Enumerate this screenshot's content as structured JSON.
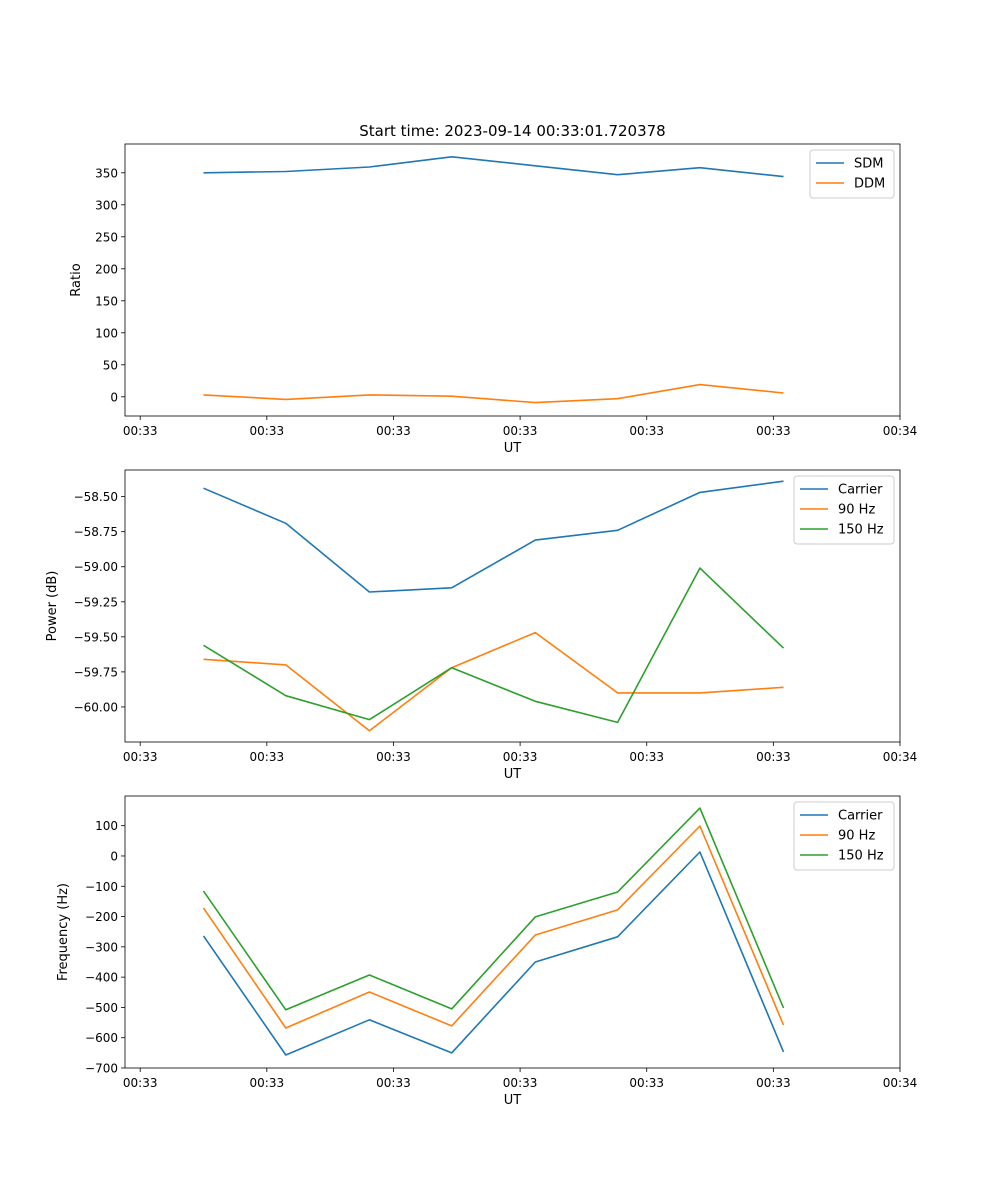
{
  "chart_data": [
    {
      "type": "line",
      "title": "Start time: 2023-09-14 00:33:01.720378",
      "xlabel": "UT",
      "ylabel": "Ratio",
      "xlim": [
        -0.12,
        6.0
      ],
      "ylim": [
        -30,
        395
      ],
      "x_ticks": [
        0,
        1,
        2,
        3,
        4,
        5,
        6
      ],
      "x_tick_labels": [
        "00:33",
        "00:33",
        "00:33",
        "00:33",
        "00:33",
        "00:33",
        "00:34"
      ],
      "y_ticks": [
        0,
        50,
        100,
        150,
        200,
        250,
        300,
        350
      ],
      "y_tick_labels": [
        "0",
        "50",
        "100",
        "150",
        "200",
        "250",
        "300",
        "350"
      ],
      "x": [
        0.5,
        1.15,
        1.81,
        2.46,
        3.12,
        3.77,
        4.42,
        5.08
      ],
      "legend": "top-right",
      "series": [
        {
          "name": "SDM",
          "color": "#1f77b4",
          "values": [
            350,
            352,
            359,
            375,
            361,
            347,
            358,
            344
          ]
        },
        {
          "name": "DDM",
          "color": "#ff7f0e",
          "values": [
            3,
            -4,
            3,
            1,
            -9,
            -3,
            19,
            6
          ]
        }
      ]
    },
    {
      "type": "line",
      "title": "",
      "xlabel": "UT",
      "ylabel": "Power (dB)",
      "xlim": [
        -0.12,
        6.0
      ],
      "ylim": [
        -60.25,
        -58.31
      ],
      "x_ticks": [
        0,
        1,
        2,
        3,
        4,
        5,
        6
      ],
      "x_tick_labels": [
        "00:33",
        "00:33",
        "00:33",
        "00:33",
        "00:33",
        "00:33",
        "00:34"
      ],
      "y_ticks": [
        -60.0,
        -59.75,
        -59.5,
        -59.25,
        -59.0,
        -58.75,
        -58.5
      ],
      "y_tick_labels": [
        "−60.00",
        "−59.75",
        "−59.50",
        "−59.25",
        "−59.00",
        "−58.75",
        "−58.50"
      ],
      "x": [
        0.5,
        1.15,
        1.81,
        2.46,
        3.12,
        3.77,
        4.42,
        5.08
      ],
      "legend": "top-right",
      "series": [
        {
          "name": "Carrier",
          "color": "#1f77b4",
          "values": [
            -58.44,
            -58.69,
            -59.18,
            -59.15,
            -58.81,
            -58.74,
            -58.47,
            -58.39
          ]
        },
        {
          "name": "90 Hz",
          "color": "#ff7f0e",
          "values": [
            -59.66,
            -59.7,
            -60.17,
            -59.72,
            -59.47,
            -59.9,
            -59.9,
            -59.86
          ]
        },
        {
          "name": "150 Hz",
          "color": "#2ca02c",
          "values": [
            -59.56,
            -59.92,
            -60.09,
            -59.72,
            -59.96,
            -60.11,
            -59.01,
            -59.58
          ]
        }
      ]
    },
    {
      "type": "line",
      "title": "",
      "xlabel": "UT",
      "ylabel": "Frequency (Hz)",
      "xlim": [
        -0.12,
        6.0
      ],
      "ylim": [
        -700,
        198
      ],
      "x_ticks": [
        0,
        1,
        2,
        3,
        4,
        5,
        6
      ],
      "x_tick_labels": [
        "00:33",
        "00:33",
        "00:33",
        "00:33",
        "00:33",
        "00:33",
        "00:34"
      ],
      "y_ticks": [
        -700,
        -600,
        -500,
        -400,
        -300,
        -200,
        -100,
        0,
        100
      ],
      "y_tick_labels": [
        "−700",
        "−600",
        "−500",
        "−400",
        "−300",
        "−200",
        "−100",
        "0",
        "100"
      ],
      "x": [
        0.5,
        1.15,
        1.81,
        2.46,
        3.12,
        3.77,
        4.42,
        5.08
      ],
      "legend": "top-right",
      "series": [
        {
          "name": "Carrier",
          "color": "#1f77b4",
          "values": [
            -264,
            -657,
            -541,
            -650,
            -350,
            -267,
            13,
            -647
          ]
        },
        {
          "name": "90 Hz",
          "color": "#ff7f0e",
          "values": [
            -172,
            -568,
            -449,
            -561,
            -261,
            -178,
            99,
            -558
          ]
        },
        {
          "name": "150 Hz",
          "color": "#2ca02c",
          "values": [
            -116,
            -508,
            -393,
            -505,
            -201,
            -119,
            158,
            -502
          ]
        }
      ]
    }
  ]
}
